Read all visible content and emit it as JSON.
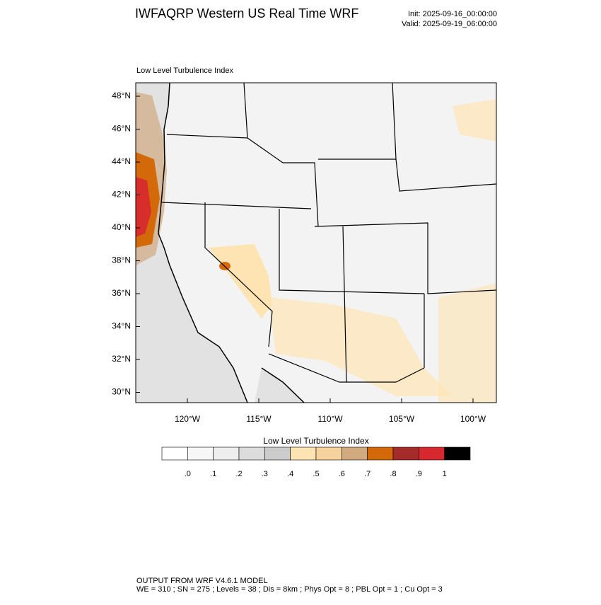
{
  "header": {
    "title": "IWFAQRP Western US Real Time WRF",
    "init": "Init: 2025-09-16_00:00:00",
    "valid": "Valid: 2025-09-19_06:00:00"
  },
  "map": {
    "subtitle": "Low Level Turbulence Index",
    "lat_labels": [
      "48°N",
      "46°N",
      "44°N",
      "42°N",
      "40°N",
      "38°N",
      "36°N",
      "34°N",
      "32°N",
      "30°N"
    ],
    "lon_labels": [
      "120°W",
      "115°W",
      "110°W",
      "105°W",
      "100°W"
    ]
  },
  "colorbar": {
    "title": "Low Level Turbulence Index",
    "colors": [
      "#ffffff",
      "#f7f7f7",
      "#eeeeee",
      "#dcdcdc",
      "#cccccc",
      "#ffe4b3",
      "#f6d29c",
      "#d2aa80",
      "#d4690a",
      "#a52a2a",
      "#d7282f",
      "#000000"
    ],
    "labels": [
      ".0",
      ".1",
      ".2",
      ".3",
      ".4",
      ".5",
      ".6",
      ".7",
      ".8",
      ".9",
      "1"
    ]
  },
  "footer": {
    "line1": "OUTPUT FROM WRF V4.6.1 MODEL",
    "line2": "WE = 310 ; SN = 275 ; Levels = 38 ; Dis = 8km ; Phys Opt = 8 ; PBL Opt = 1 ; Cu Opt = 3"
  }
}
